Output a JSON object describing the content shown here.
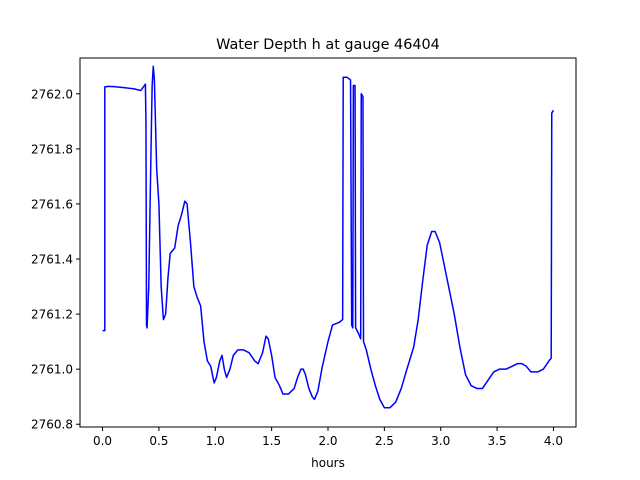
{
  "chart_data": {
    "type": "line",
    "title": "Water Depth h at gauge 46404",
    "xlabel": "hours",
    "ylabel": "",
    "xlim": [
      -0.2,
      4.2
    ],
    "ylim": [
      2760.79,
      2762.13
    ],
    "xticks": [
      0.0,
      0.5,
      1.0,
      1.5,
      2.0,
      2.5,
      3.0,
      3.5,
      4.0
    ],
    "xtick_labels": [
      "0.0",
      "0.5",
      "1.0",
      "1.5",
      "2.0",
      "2.5",
      "3.0",
      "3.5",
      "4.0"
    ],
    "yticks": [
      2760.8,
      2761.0,
      2761.2,
      2761.4,
      2761.6,
      2761.8,
      2762.0
    ],
    "ytick_labels": [
      "2760.8",
      "2761.0",
      "2761.2",
      "2761.4",
      "2761.6",
      "2761.8",
      "2762.0"
    ],
    "grid": false,
    "legend": "none",
    "series": [
      {
        "name": "",
        "color": "#0000ff",
        "points": [
          [
            0.0,
            2761.14
          ],
          [
            0.02,
            2761.14
          ],
          [
            0.02,
            2762.025
          ],
          [
            0.05,
            2762.027
          ],
          [
            0.1,
            2762.026
          ],
          [
            0.2,
            2762.022
          ],
          [
            0.28,
            2762.018
          ],
          [
            0.34,
            2762.012
          ],
          [
            0.38,
            2762.035
          ],
          [
            0.385,
            2761.9
          ],
          [
            0.39,
            2761.16
          ],
          [
            0.395,
            2761.15
          ],
          [
            0.41,
            2761.3
          ],
          [
            0.43,
            2761.8
          ],
          [
            0.44,
            2762.03
          ],
          [
            0.45,
            2762.1
          ],
          [
            0.46,
            2762.05
          ],
          [
            0.48,
            2761.73
          ],
          [
            0.5,
            2761.6
          ],
          [
            0.52,
            2761.3
          ],
          [
            0.54,
            2761.18
          ],
          [
            0.56,
            2761.2
          ],
          [
            0.58,
            2761.33
          ],
          [
            0.6,
            2761.42
          ],
          [
            0.62,
            2761.43
          ],
          [
            0.64,
            2761.44
          ],
          [
            0.67,
            2761.52
          ],
          [
            0.7,
            2761.56
          ],
          [
            0.73,
            2761.61
          ],
          [
            0.75,
            2761.6
          ],
          [
            0.78,
            2761.46
          ],
          [
            0.81,
            2761.3
          ],
          [
            0.84,
            2761.26
          ],
          [
            0.87,
            2761.23
          ],
          [
            0.9,
            2761.1
          ],
          [
            0.93,
            2761.03
          ],
          [
            0.96,
            2761.01
          ],
          [
            0.99,
            2760.95
          ],
          [
            1.01,
            2760.97
          ],
          [
            1.04,
            2761.03
          ],
          [
            1.06,
            2761.05
          ],
          [
            1.08,
            2761.0
          ],
          [
            1.1,
            2760.97
          ],
          [
            1.13,
            2761.0
          ],
          [
            1.16,
            2761.05
          ],
          [
            1.2,
            2761.07
          ],
          [
            1.25,
            2761.07
          ],
          [
            1.3,
            2761.06
          ],
          [
            1.35,
            2761.03
          ],
          [
            1.38,
            2761.02
          ],
          [
            1.42,
            2761.06
          ],
          [
            1.45,
            2761.12
          ],
          [
            1.47,
            2761.11
          ],
          [
            1.5,
            2761.05
          ],
          [
            1.53,
            2760.97
          ],
          [
            1.57,
            2760.94
          ],
          [
            1.6,
            2760.91
          ],
          [
            1.65,
            2760.91
          ],
          [
            1.7,
            2760.93
          ],
          [
            1.73,
            2760.97
          ],
          [
            1.76,
            2761.0
          ],
          [
            1.78,
            2761.0
          ],
          [
            1.8,
            2760.98
          ],
          [
            1.83,
            2760.93
          ],
          [
            1.86,
            2760.9
          ],
          [
            1.88,
            2760.89
          ],
          [
            1.91,
            2760.92
          ],
          [
            1.95,
            2761.01
          ],
          [
            2.0,
            2761.1
          ],
          [
            2.04,
            2761.16
          ],
          [
            2.1,
            2761.17
          ],
          [
            2.13,
            2761.18
          ],
          [
            2.135,
            2762.06
          ],
          [
            2.17,
            2762.06
          ],
          [
            2.2,
            2762.05
          ],
          [
            2.21,
            2761.16
          ],
          [
            2.22,
            2761.15
          ],
          [
            2.225,
            2762.03
          ],
          [
            2.24,
            2762.03
          ],
          [
            2.245,
            2761.15
          ],
          [
            2.27,
            2761.13
          ],
          [
            2.29,
            2761.11
          ],
          [
            2.295,
            2762.0
          ],
          [
            2.31,
            2761.99
          ],
          [
            2.315,
            2761.1
          ],
          [
            2.34,
            2761.07
          ],
          [
            2.38,
            2761.0
          ],
          [
            2.42,
            2760.94
          ],
          [
            2.46,
            2760.89
          ],
          [
            2.5,
            2760.86
          ],
          [
            2.55,
            2760.86
          ],
          [
            2.6,
            2760.88
          ],
          [
            2.65,
            2760.93
          ],
          [
            2.7,
            2761.0
          ],
          [
            2.76,
            2761.08
          ],
          [
            2.8,
            2761.18
          ],
          [
            2.84,
            2761.32
          ],
          [
            2.88,
            2761.45
          ],
          [
            2.92,
            2761.5
          ],
          [
            2.95,
            2761.5
          ],
          [
            2.99,
            2761.46
          ],
          [
            3.03,
            2761.38
          ],
          [
            3.07,
            2761.3
          ],
          [
            3.12,
            2761.2
          ],
          [
            3.17,
            2761.08
          ],
          [
            3.22,
            2760.98
          ],
          [
            3.27,
            2760.94
          ],
          [
            3.32,
            2760.93
          ],
          [
            3.37,
            2760.93
          ],
          [
            3.42,
            2760.96
          ],
          [
            3.47,
            2760.99
          ],
          [
            3.52,
            2761.0
          ],
          [
            3.58,
            2761.0
          ],
          [
            3.63,
            2761.01
          ],
          [
            3.68,
            2761.02
          ],
          [
            3.72,
            2761.02
          ],
          [
            3.76,
            2761.01
          ],
          [
            3.8,
            2760.99
          ],
          [
            3.86,
            2760.99
          ],
          [
            3.91,
            2761.0
          ],
          [
            3.96,
            2761.03
          ],
          [
            3.98,
            2761.04
          ],
          [
            3.985,
            2761.93
          ],
          [
            4.0,
            2761.94
          ]
        ]
      }
    ]
  }
}
